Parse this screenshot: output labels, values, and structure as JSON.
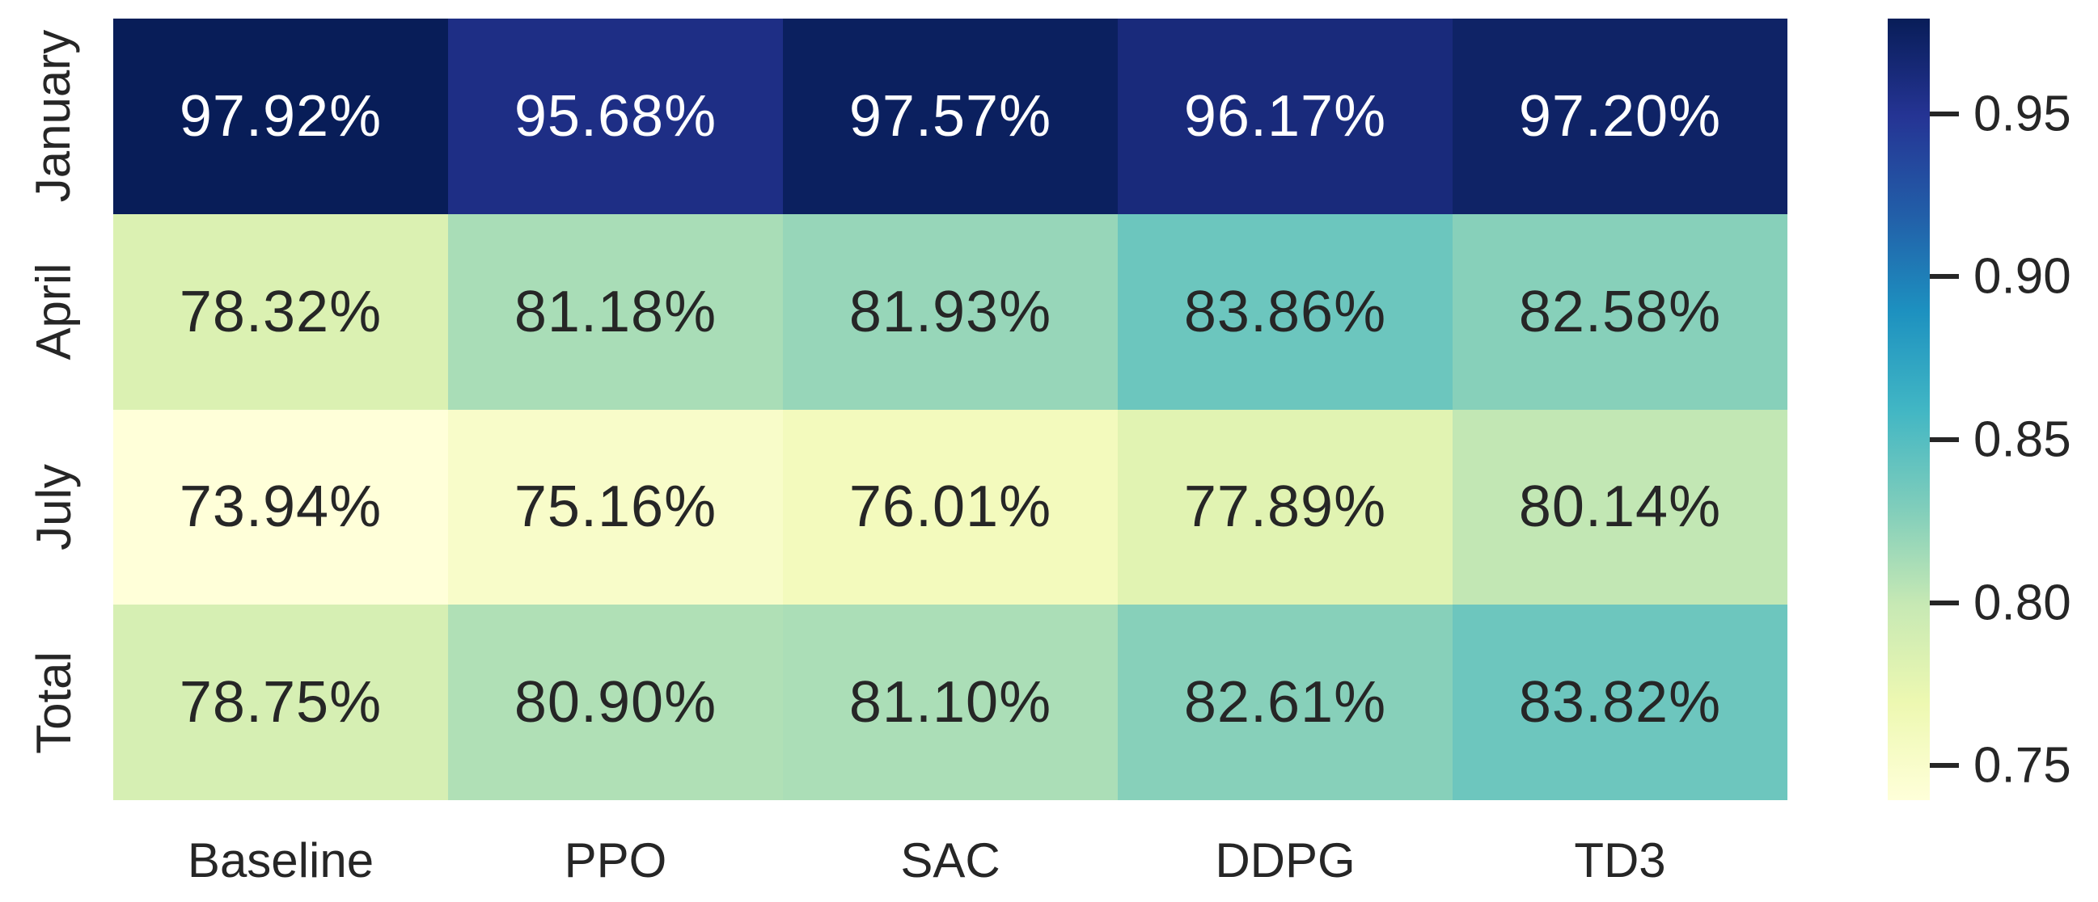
{
  "figure": {
    "background": "#ffffff",
    "text_color_dark": "#262626",
    "text_color_light": "#ffffff"
  },
  "chart_data": {
    "type": "heatmap",
    "rows": [
      "January",
      "April",
      "July",
      "Total"
    ],
    "columns": [
      "Baseline",
      "PPO",
      "SAC",
      "DDPG",
      "TD3"
    ],
    "values_percent": [
      [
        97.92,
        95.68,
        97.57,
        96.17,
        97.2
      ],
      [
        78.32,
        81.18,
        81.93,
        83.86,
        82.58
      ],
      [
        73.94,
        75.16,
        76.01,
        77.89,
        80.14
      ],
      [
        78.75,
        80.9,
        81.1,
        82.61,
        83.82
      ]
    ],
    "cell_labels": [
      [
        "97.92%",
        "95.68%",
        "97.57%",
        "96.17%",
        "97.20%"
      ],
      [
        "78.32%",
        "81.18%",
        "81.93%",
        "83.86%",
        "82.58%"
      ],
      [
        "73.94%",
        "75.16%",
        "76.01%",
        "77.89%",
        "80.14%"
      ],
      [
        "78.75%",
        "80.90%",
        "81.10%",
        "82.61%",
        "83.82%"
      ]
    ],
    "vmin": 0.7394,
    "vmax": 0.9792,
    "colormap": {
      "name": "YlGnBu",
      "stops": [
        {
          "t": 0.0,
          "color": "#ffffd9"
        },
        {
          "t": 0.125,
          "color": "#edf8b1"
        },
        {
          "t": 0.25,
          "color": "#c7e9b4"
        },
        {
          "t": 0.375,
          "color": "#7fcdbb"
        },
        {
          "t": 0.5,
          "color": "#41b6c4"
        },
        {
          "t": 0.625,
          "color": "#1d91c0"
        },
        {
          "t": 0.75,
          "color": "#225ea8"
        },
        {
          "t": 0.875,
          "color": "#253494"
        },
        {
          "t": 1.0,
          "color": "#081d58"
        }
      ]
    },
    "colorbar": {
      "position": "right",
      "tick_labels": [
        "0.95",
        "0.90",
        "0.85",
        "0.80",
        "0.75"
      ],
      "tick_values": [
        0.95,
        0.9,
        0.85,
        0.8,
        0.75
      ]
    },
    "grid": false,
    "annotations": true
  }
}
